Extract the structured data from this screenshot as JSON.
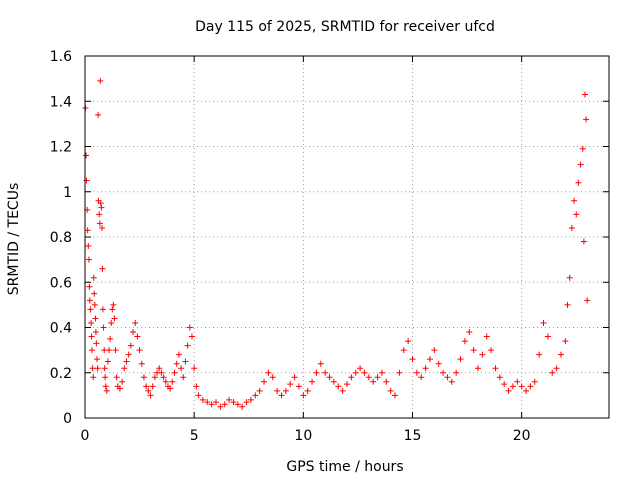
{
  "chart_data": {
    "type": "scatter",
    "title": "Day 115 of 2025, SRMTID for receiver ufcd",
    "xlabel": "GPS time / hours",
    "ylabel": "SRMTID / TECUs",
    "xlim": [
      0,
      24
    ],
    "ylim": [
      0,
      1.6
    ],
    "xticks": [
      0,
      5,
      10,
      15,
      20
    ],
    "xtick_labels": [
      "0",
      "5",
      "10",
      "15",
      "20"
    ],
    "yticks": [
      0,
      0.2,
      0.4,
      0.6,
      0.8,
      1.0,
      1.2,
      1.4,
      1.6
    ],
    "ytick_labels": [
      "0",
      "0.2",
      "0.4",
      "0.6",
      "0.8",
      "1",
      "1.2",
      "1.4",
      "1.6"
    ],
    "grid": true,
    "marker": "+",
    "marker_color": "#ff0000",
    "series": [
      {
        "name": "SRMTID",
        "points": [
          [
            0.02,
            1.37
          ],
          [
            0.05,
            1.16
          ],
          [
            0.07,
            1.05
          ],
          [
            0.1,
            0.92
          ],
          [
            0.12,
            0.83
          ],
          [
            0.15,
            0.76
          ],
          [
            0.18,
            0.7
          ],
          [
            0.2,
            0.58
          ],
          [
            0.22,
            0.52
          ],
          [
            0.25,
            0.48
          ],
          [
            0.28,
            0.42
          ],
          [
            0.3,
            0.36
          ],
          [
            0.32,
            0.3
          ],
          [
            0.35,
            0.22
          ],
          [
            0.38,
            0.18
          ],
          [
            0.4,
            0.62
          ],
          [
            0.42,
            0.55
          ],
          [
            0.45,
            0.5
          ],
          [
            0.48,
            0.44
          ],
          [
            0.5,
            0.38
          ],
          [
            0.52,
            0.33
          ],
          [
            0.55,
            0.26
          ],
          [
            0.58,
            0.22
          ],
          [
            0.6,
            1.34
          ],
          [
            0.62,
            0.96
          ],
          [
            0.65,
            0.9
          ],
          [
            0.68,
            0.86
          ],
          [
            0.7,
            1.49
          ],
          [
            0.72,
            0.95
          ],
          [
            0.75,
            0.93
          ],
          [
            0.78,
            0.84
          ],
          [
            0.8,
            0.66
          ],
          [
            0.82,
            0.48
          ],
          [
            0.85,
            0.4
          ],
          [
            0.88,
            0.3
          ],
          [
            0.9,
            0.22
          ],
          [
            0.92,
            0.18
          ],
          [
            0.95,
            0.14
          ],
          [
            1.0,
            0.12
          ],
          [
            1.05,
            0.25
          ],
          [
            1.1,
            0.3
          ],
          [
            1.15,
            0.35
          ],
          [
            1.2,
            0.42
          ],
          [
            1.25,
            0.48
          ],
          [
            1.3,
            0.5
          ],
          [
            1.35,
            0.44
          ],
          [
            1.4,
            0.3
          ],
          [
            1.45,
            0.18
          ],
          [
            1.5,
            0.14
          ],
          [
            1.6,
            0.13
          ],
          [
            1.7,
            0.16
          ],
          [
            1.8,
            0.22
          ],
          [
            1.9,
            0.25
          ],
          [
            2.0,
            0.28
          ],
          [
            2.1,
            0.32
          ],
          [
            2.2,
            0.38
          ],
          [
            2.3,
            0.42
          ],
          [
            2.4,
            0.36
          ],
          [
            2.5,
            0.3
          ],
          [
            2.6,
            0.24
          ],
          [
            2.7,
            0.18
          ],
          [
            2.8,
            0.14
          ],
          [
            2.9,
            0.12
          ],
          [
            3.0,
            0.1
          ],
          [
            3.1,
            0.14
          ],
          [
            3.2,
            0.18
          ],
          [
            3.3,
            0.2
          ],
          [
            3.4,
            0.22
          ],
          [
            3.5,
            0.2
          ],
          [
            3.6,
            0.18
          ],
          [
            3.7,
            0.16
          ],
          [
            3.8,
            0.14
          ],
          [
            3.9,
            0.13
          ],
          [
            4.0,
            0.16
          ],
          [
            4.1,
            0.2
          ],
          [
            4.2,
            0.24
          ],
          [
            4.3,
            0.28
          ],
          [
            4.4,
            0.22
          ],
          [
            4.5,
            0.18
          ],
          [
            4.6,
            0.25
          ],
          [
            4.7,
            0.32
          ],
          [
            4.8,
            0.4
          ],
          [
            4.9,
            0.36
          ],
          [
            5.0,
            0.22
          ],
          [
            5.1,
            0.14
          ],
          [
            5.2,
            0.1
          ],
          [
            5.4,
            0.08
          ],
          [
            5.6,
            0.07
          ],
          [
            5.8,
            0.06
          ],
          [
            6.0,
            0.07
          ],
          [
            6.2,
            0.05
          ],
          [
            6.4,
            0.06
          ],
          [
            6.6,
            0.08
          ],
          [
            6.8,
            0.07
          ],
          [
            7.0,
            0.06
          ],
          [
            7.2,
            0.05
          ],
          [
            7.4,
            0.07
          ],
          [
            7.6,
            0.08
          ],
          [
            7.8,
            0.1
          ],
          [
            8.0,
            0.12
          ],
          [
            8.2,
            0.16
          ],
          [
            8.4,
            0.2
          ],
          [
            8.6,
            0.18
          ],
          [
            8.8,
            0.12
          ],
          [
            9.0,
            0.1
          ],
          [
            9.2,
            0.12
          ],
          [
            9.4,
            0.15
          ],
          [
            9.6,
            0.18
          ],
          [
            9.8,
            0.14
          ],
          [
            10.0,
            0.1
          ],
          [
            10.2,
            0.12
          ],
          [
            10.4,
            0.16
          ],
          [
            10.6,
            0.2
          ],
          [
            10.8,
            0.24
          ],
          [
            11.0,
            0.2
          ],
          [
            11.2,
            0.18
          ],
          [
            11.4,
            0.16
          ],
          [
            11.6,
            0.14
          ],
          [
            11.8,
            0.12
          ],
          [
            12.0,
            0.15
          ],
          [
            12.2,
            0.18
          ],
          [
            12.4,
            0.2
          ],
          [
            12.6,
            0.22
          ],
          [
            12.8,
            0.2
          ],
          [
            13.0,
            0.18
          ],
          [
            13.2,
            0.16
          ],
          [
            13.4,
            0.18
          ],
          [
            13.6,
            0.2
          ],
          [
            13.8,
            0.16
          ],
          [
            14.0,
            0.12
          ],
          [
            14.2,
            0.1
          ],
          [
            14.4,
            0.2
          ],
          [
            14.6,
            0.3
          ],
          [
            14.8,
            0.34
          ],
          [
            15.0,
            0.26
          ],
          [
            15.2,
            0.2
          ],
          [
            15.4,
            0.18
          ],
          [
            15.6,
            0.22
          ],
          [
            15.8,
            0.26
          ],
          [
            16.0,
            0.3
          ],
          [
            16.2,
            0.24
          ],
          [
            16.4,
            0.2
          ],
          [
            16.6,
            0.18
          ],
          [
            16.8,
            0.16
          ],
          [
            17.0,
            0.2
          ],
          [
            17.2,
            0.26
          ],
          [
            17.4,
            0.34
          ],
          [
            17.6,
            0.38
          ],
          [
            17.8,
            0.3
          ],
          [
            18.0,
            0.22
          ],
          [
            18.2,
            0.28
          ],
          [
            18.4,
            0.36
          ],
          [
            18.6,
            0.3
          ],
          [
            18.8,
            0.22
          ],
          [
            19.0,
            0.18
          ],
          [
            19.2,
            0.15
          ],
          [
            19.4,
            0.12
          ],
          [
            19.6,
            0.14
          ],
          [
            19.8,
            0.16
          ],
          [
            20.0,
            0.14
          ],
          [
            20.2,
            0.12
          ],
          [
            20.4,
            0.14
          ],
          [
            20.6,
            0.16
          ],
          [
            20.8,
            0.28
          ],
          [
            21.0,
            0.42
          ],
          [
            21.2,
            0.36
          ],
          [
            21.4,
            0.2
          ],
          [
            21.6,
            0.22
          ],
          [
            21.8,
            0.28
          ],
          [
            22.0,
            0.34
          ],
          [
            22.1,
            0.5
          ],
          [
            22.2,
            0.62
          ],
          [
            22.3,
            0.84
          ],
          [
            22.4,
            0.96
          ],
          [
            22.5,
            0.9
          ],
          [
            22.6,
            1.04
          ],
          [
            22.7,
            1.12
          ],
          [
            22.8,
            1.19
          ],
          [
            22.85,
            0.78
          ],
          [
            22.9,
            1.43
          ],
          [
            22.95,
            1.32
          ],
          [
            23.0,
            0.52
          ]
        ]
      }
    ]
  }
}
